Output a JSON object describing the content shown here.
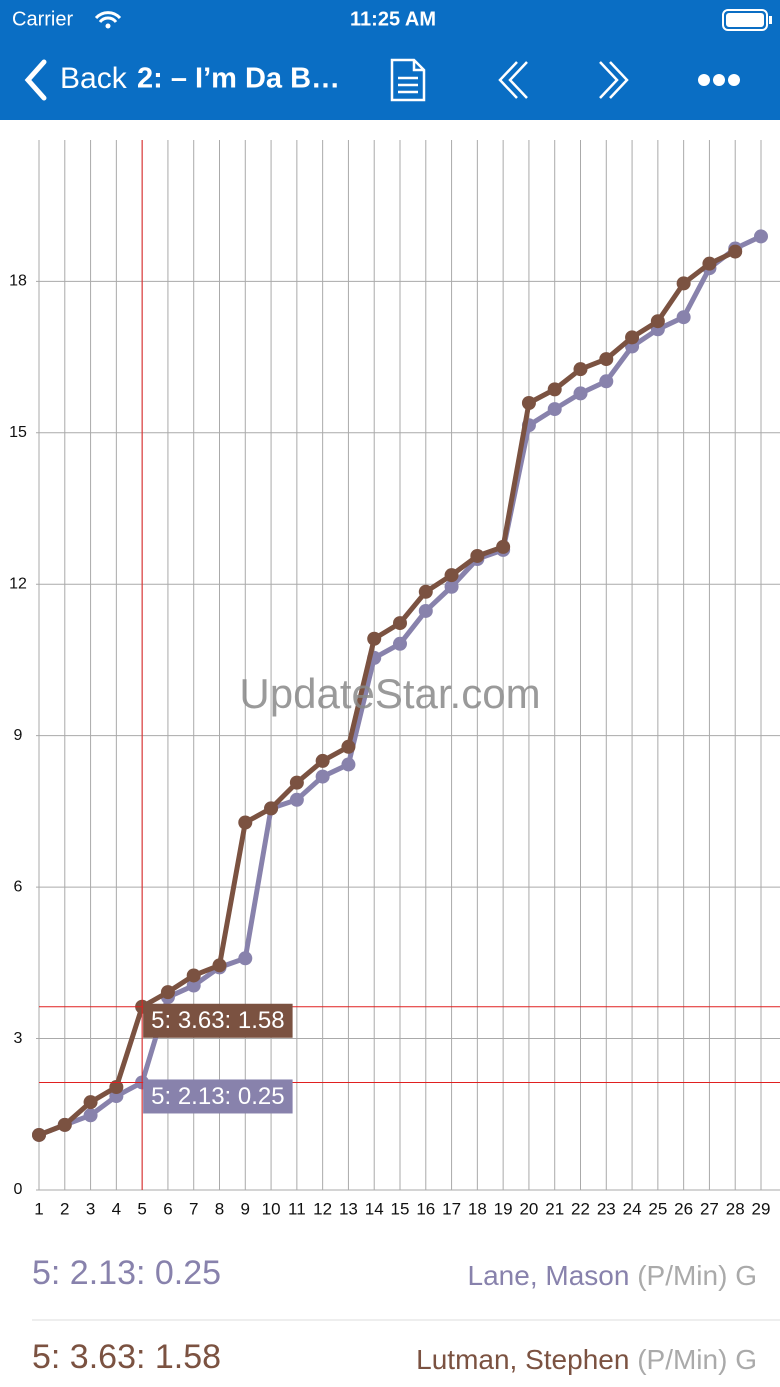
{
  "status_bar": {
    "carrier": "Carrier",
    "time": "11:25 AM"
  },
  "nav_bar": {
    "back": "Back",
    "title": "2: – I’m Da B…"
  },
  "watermark": "UpdateStar.com",
  "chart_data": {
    "type": "line",
    "x": [
      1,
      2,
      3,
      4,
      5,
      6,
      7,
      8,
      9,
      10,
      11,
      12,
      13,
      14,
      15,
      16,
      17,
      18,
      19,
      20,
      21,
      22,
      23,
      24,
      25,
      26,
      27,
      28,
      29
    ],
    "series": [
      {
        "name": "Lane, Mason",
        "color": "#8882ac",
        "values": [
          1.09,
          1.29,
          1.48,
          1.86,
          2.13,
          3.82,
          4.05,
          4.41,
          4.59,
          7.56,
          7.73,
          8.19,
          8.43,
          10.54,
          10.82,
          11.47,
          11.95,
          12.5,
          12.68,
          15.15,
          15.47,
          15.78,
          16.02,
          16.71,
          17.05,
          17.29,
          18.26,
          18.65,
          18.89
        ]
      },
      {
        "name": "Lutman, Stephen",
        "color": "#7b5241",
        "values": [
          1.09,
          1.29,
          1.74,
          2.04,
          3.63,
          3.92,
          4.25,
          4.45,
          7.28,
          7.56,
          8.07,
          8.5,
          8.78,
          10.92,
          11.23,
          11.85,
          12.18,
          12.56,
          12.74,
          15.59,
          15.86,
          16.26,
          16.46,
          16.89,
          17.21,
          17.96,
          18.35,
          18.59,
          null
        ]
      }
    ],
    "xlim": [
      1,
      29
    ],
    "xticks": [
      1,
      2,
      3,
      4,
      5,
      6,
      7,
      8,
      9,
      10,
      11,
      12,
      13,
      14,
      15,
      16,
      17,
      18,
      19,
      20,
      21,
      22,
      23,
      24,
      25,
      26,
      27,
      28,
      29
    ],
    "ylim": [
      0,
      20.8
    ],
    "yticks": [
      0,
      3,
      6,
      9,
      12,
      15,
      18
    ],
    "grid": true,
    "cursor": {
      "x": 5,
      "color": "#e02020"
    },
    "annotations": [
      {
        "series": 1,
        "x": 5,
        "y": 3.63,
        "text": "5: 3.63: 1.58"
      },
      {
        "series": 0,
        "x": 5,
        "y": 2.13,
        "text": "5: 2.13: 0.25"
      }
    ]
  },
  "footer": {
    "rows": [
      {
        "series": 0,
        "readout": "5: 2.13: 0.25",
        "unit": "(P/Min)",
        "flag": "G"
      },
      {
        "series": 1,
        "readout": "5: 3.63: 1.58",
        "unit": "(P/Min)",
        "flag": "G"
      }
    ]
  }
}
